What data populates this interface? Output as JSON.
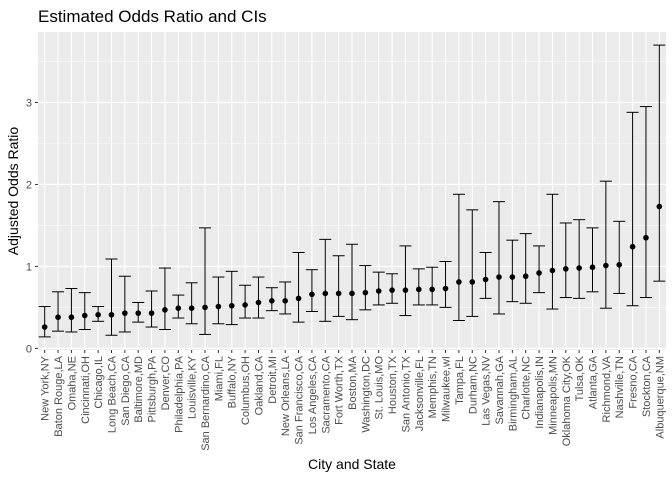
{
  "chart_data": {
    "type": "errorbar",
    "title": "Estimated Odds Ratio and CIs",
    "xlabel": "City and State",
    "ylabel": "Adjusted Odds Ratio",
    "ylim": [
      -0.02,
      3.86
    ],
    "yticks": [
      0,
      1,
      2,
      3
    ],
    "grid": true,
    "panel_background": "#ebebeb",
    "grid_color": "#ffffff",
    "point_color": "#000000",
    "categories": [
      "New York,NY",
      "Baton Rouge,LA",
      "Omaha,NE",
      "Cincinnati,OH",
      "Chicago,IL",
      "Long Beach,CA",
      "San Diego,CA",
      "Baltimore,MD",
      "Pittsburgh,PA",
      "Denver,CO",
      "Philadelphia,PA",
      "Louisville,KY",
      "San Bernardino,CA",
      "Miami,FL",
      "Buffalo,NY",
      "Columbus,OH",
      "Oakland,CA",
      "Detroit,MI",
      "New Orleans,LA",
      "San Francisco,CA",
      "Los Angeles,CA",
      "Sacramento,CA",
      "Fort Worth,TX",
      "Boston,MA",
      "Washington,DC",
      "St. Louis,MO",
      "Houston,TX",
      "San Antonio,TX",
      "Jacksonville,FL",
      "Memphis,TN",
      "Milwaukee,wI",
      "Tampa,FL",
      "Durham,NC",
      "Las Vegas,NV",
      "Savannah,GA",
      "Birmingham,AL",
      "Charlotte,NC",
      "Indianapolis,IN",
      "Minneapolis,MN",
      "Oklahoma City,OK",
      "Tulsa,OK",
      "Atlanta,GA",
      "Richmond,VA",
      "Nashville,TN",
      "Fresno,CA",
      "Stockton,CA",
      "Albuquerque,NM"
    ],
    "estimate": [
      0.26,
      0.38,
      0.38,
      0.4,
      0.41,
      0.41,
      0.43,
      0.43,
      0.43,
      0.47,
      0.49,
      0.49,
      0.5,
      0.51,
      0.52,
      0.53,
      0.56,
      0.58,
      0.58,
      0.61,
      0.66,
      0.67,
      0.67,
      0.67,
      0.68,
      0.7,
      0.71,
      0.71,
      0.72,
      0.72,
      0.73,
      0.81,
      0.81,
      0.84,
      0.87,
      0.87,
      0.88,
      0.92,
      0.95,
      0.97,
      0.98,
      0.99,
      1.01,
      1.02,
      1.24,
      1.35,
      1.73
    ],
    "lower": [
      0.14,
      0.21,
      0.2,
      0.23,
      0.33,
      0.16,
      0.2,
      0.32,
      0.26,
      0.23,
      0.37,
      0.3,
      0.17,
      0.3,
      0.29,
      0.37,
      0.37,
      0.46,
      0.42,
      0.32,
      0.45,
      0.33,
      0.39,
      0.35,
      0.47,
      0.53,
      0.55,
      0.4,
      0.53,
      0.53,
      0.5,
      0.34,
      0.39,
      0.61,
      0.42,
      0.57,
      0.55,
      0.68,
      0.48,
      0.62,
      0.61,
      0.69,
      0.49,
      0.67,
      0.52,
      0.62,
      0.82
    ],
    "upper": [
      0.51,
      0.69,
      0.73,
      0.68,
      0.51,
      1.09,
      0.88,
      0.56,
      0.7,
      0.98,
      0.65,
      0.8,
      1.47,
      0.87,
      0.94,
      0.77,
      0.87,
      0.74,
      0.81,
      1.17,
      0.96,
      1.33,
      1.13,
      1.27,
      1.01,
      0.93,
      0.91,
      1.25,
      0.97,
      0.99,
      1.06,
      1.88,
      1.69,
      1.17,
      1.79,
      1.32,
      1.4,
      1.25,
      1.88,
      1.53,
      1.57,
      1.47,
      2.04,
      1.55,
      2.88,
      2.95,
      3.7
    ]
  }
}
